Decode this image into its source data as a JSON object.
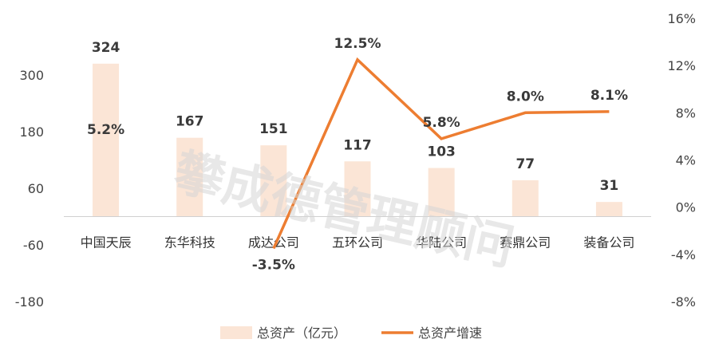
{
  "watermark": "攀成德管理顾问",
  "chart_data": {
    "type": "bar+line",
    "categories": [
      "中国天辰",
      "东华科技",
      "成达公司",
      "五环公司",
      "华陆公司",
      "赛鼎公司",
      "装备公司"
    ],
    "series": [
      {
        "name": "总资产（亿元）",
        "type": "bar",
        "axis": "left",
        "color": "#fbe5d6",
        "values": [
          324,
          167,
          151,
          117,
          103,
          77,
          31
        ],
        "labels": [
          "324",
          "167",
          "151",
          "117",
          "103",
          "77",
          "31"
        ]
      },
      {
        "name": "总资产增速",
        "type": "line",
        "axis": "right",
        "color": "#ed7d31",
        "values": [
          5.2,
          null,
          -3.5,
          12.5,
          5.8,
          8.0,
          8.1
        ],
        "labels": [
          "5.2%",
          "",
          "-3.5%",
          "12.5%",
          "5.8%",
          "8.0%",
          "8.1%"
        ]
      }
    ],
    "y_left": {
      "min": -180,
      "max": 420,
      "ticks": [
        -180,
        -60,
        60,
        180,
        300
      ],
      "tick_labels": [
        "-180",
        "-60",
        "60",
        "180",
        "300"
      ]
    },
    "y_right": {
      "min": -8,
      "max": 16,
      "ticks": [
        -8,
        -4,
        0,
        4,
        8,
        12,
        16
      ],
      "tick_labels": [
        "-8%",
        "-4%",
        "0%",
        "4%",
        "8%",
        "12%",
        "16%"
      ]
    },
    "legend": {
      "position": "bottom",
      "items": [
        "总资产（亿元）",
        "总资产增速"
      ]
    },
    "grid": false
  }
}
